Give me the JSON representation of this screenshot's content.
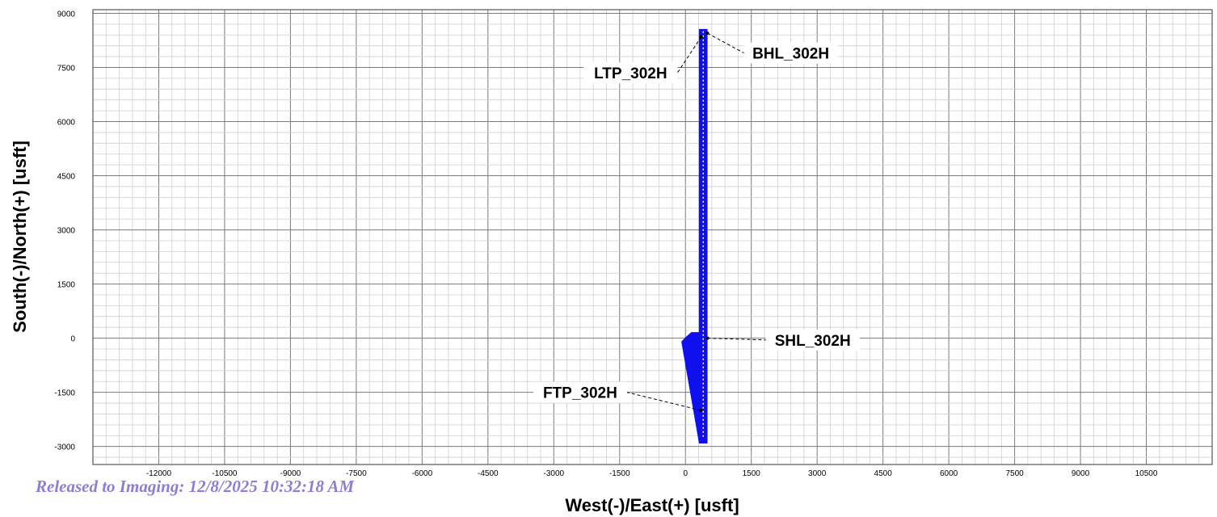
{
  "chart_data": {
    "type": "line",
    "title": "",
    "xlabel": "West(-)/East(+) [usft]",
    "ylabel": "South(-)/North(+) [usft]",
    "xlim": [
      -13500,
      12000
    ],
    "ylim": [
      -3500,
      9100
    ],
    "x_ticks": [
      -12000,
      -10500,
      -9000,
      -7500,
      -6000,
      -4500,
      -3000,
      -1500,
      0,
      1500,
      3000,
      4500,
      6000,
      7500,
      9000,
      10500
    ],
    "x_tick_labels": [
      "-12000",
      "-10500",
      "-9000",
      "-7500",
      "-6000",
      "-4500",
      "-3000",
      "-1500",
      "0",
      "1500",
      "3000",
      "4500",
      "6000",
      "7500",
      "9000",
      "10500"
    ],
    "y_ticks": [
      9000,
      7500,
      6000,
      4500,
      3000,
      1500,
      0,
      -1500,
      -3000
    ],
    "y_tick_labels": [
      "9000",
      "7500",
      "6000",
      "4500",
      "3000",
      "1500",
      "0",
      "-1500",
      "-3000"
    ],
    "grid": true,
    "well_color": "#1010ee",
    "series": [
      {
        "values": [
          [
            0,
            0
          ],
          [
            -80,
            -100
          ],
          [
            320,
            -2900
          ],
          [
            490,
            -2900
          ],
          [
            490,
            8550
          ],
          [
            320,
            8550
          ],
          [
            320,
            150
          ],
          [
            140,
            150
          ],
          [
            0,
            0
          ]
        ]
      }
    ],
    "annotations": [
      {
        "text": "BHL_302H",
        "point": [
          500,
          8450
        ],
        "label_at": [
          2400,
          7900
        ]
      },
      {
        "text": "LTP_302H",
        "point": [
          360,
          8350
        ],
        "label_at": [
          -1250,
          7350
        ]
      },
      {
        "text": "SHL_302H",
        "point": [
          500,
          0
        ],
        "label_at": [
          2900,
          -50
        ]
      },
      {
        "text": "FTP_302H",
        "point": [
          350,
          -2000
        ],
        "label_at": [
          -2400,
          -1500
        ]
      }
    ]
  },
  "stamp": "Released to Imaging: 12/8/2025 10:32:18 AM"
}
